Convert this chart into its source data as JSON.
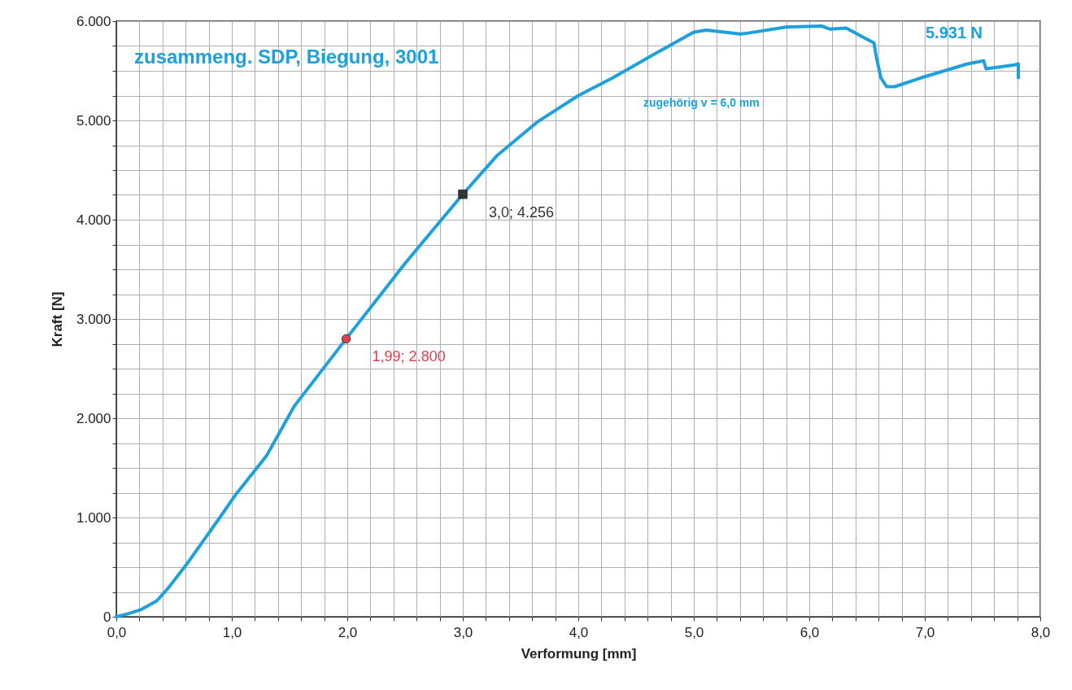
{
  "chart_data": {
    "type": "line",
    "title": "zusammeng. SDP, Biegung,  3001",
    "xlabel": "Verformung [mm]",
    "ylabel": "Kraft [N]",
    "annotations": [
      "5.931 N",
      "zugehörig v = 6,0 mm"
    ],
    "xlim": [
      0,
      8
    ],
    "ylim": [
      0,
      6000
    ],
    "xticks": [
      {
        "value": 0,
        "label": "0,0"
      },
      {
        "value": 0.2,
        "label": null
      },
      {
        "value": 0.4,
        "label": null
      },
      {
        "value": 0.6,
        "label": null
      },
      {
        "value": 0.8,
        "label": null
      },
      {
        "value": 1,
        "label": "1,0"
      },
      {
        "value": 1.2,
        "label": null
      },
      {
        "value": 1.4,
        "label": null
      },
      {
        "value": 1.6,
        "label": null
      },
      {
        "value": 1.8,
        "label": null
      },
      {
        "value": 2,
        "label": "2,0"
      },
      {
        "value": 2.2,
        "label": null
      },
      {
        "value": 2.4,
        "label": null
      },
      {
        "value": 2.6,
        "label": null
      },
      {
        "value": 2.8,
        "label": null
      },
      {
        "value": 3,
        "label": "3,0"
      },
      {
        "value": 3.2,
        "label": null
      },
      {
        "value": 3.4,
        "label": null
      },
      {
        "value": 3.6,
        "label": null
      },
      {
        "value": 3.8,
        "label": null
      },
      {
        "value": 4,
        "label": "4,0"
      },
      {
        "value": 4.2,
        "label": null
      },
      {
        "value": 4.4,
        "label": null
      },
      {
        "value": 4.6,
        "label": null
      },
      {
        "value": 4.8,
        "label": null
      },
      {
        "value": 5,
        "label": "5,0"
      },
      {
        "value": 5.2,
        "label": null
      },
      {
        "value": 5.4,
        "label": null
      },
      {
        "value": 5.6,
        "label": null
      },
      {
        "value": 5.8,
        "label": null
      },
      {
        "value": 6,
        "label": "6,0"
      },
      {
        "value": 6.2,
        "label": null
      },
      {
        "value": 6.4,
        "label": null
      },
      {
        "value": 6.6,
        "label": null
      },
      {
        "value": 6.8,
        "label": null
      },
      {
        "value": 7,
        "label": "7,0"
      },
      {
        "value": 7.2,
        "label": null
      },
      {
        "value": 7.4,
        "label": null
      },
      {
        "value": 7.6,
        "label": null
      },
      {
        "value": 7.8,
        "label": null
      },
      {
        "value": 8,
        "label": "8,0"
      }
    ],
    "yticks": [
      0,
      {
        "value": 250,
        "label": null
      },
      {
        "value": 500,
        "label": null
      },
      {
        "value": 750,
        "label": null
      },
      {
        "value": 1000,
        "label": "1.000"
      },
      {
        "value": 1250,
        "label": null
      },
      {
        "value": 1500,
        "label": null
      },
      {
        "value": 1750,
        "label": null
      },
      {
        "value": 2000,
        "label": "2.000"
      },
      {
        "value": 2250,
        "label": null
      },
      {
        "value": 2500,
        "label": null
      },
      {
        "value": 2750,
        "label": null
      },
      {
        "value": 3000,
        "label": "3.000"
      },
      {
        "value": 3250,
        "label": null
      },
      {
        "value": 3500,
        "label": null
      },
      {
        "value": 3750,
        "label": null
      },
      {
        "value": 4000,
        "label": "4.000"
      },
      {
        "value": 4250,
        "label": null
      },
      {
        "value": 4500,
        "label": null
      },
      {
        "value": 4750,
        "label": null
      },
      {
        "value": 5000,
        "label": "5.000"
      },
      {
        "value": 5250,
        "label": null
      },
      {
        "value": 5500,
        "label": null
      },
      {
        "value": 5750,
        "label": null
      },
      {
        "value": 6000,
        "label": "6.000"
      }
    ],
    "grid": true,
    "line_style": "solid",
    "marker": "none",
    "series": [
      {
        "color": "#1ea0dc",
        "x": [
          0,
          0.1,
          0.21,
          0.35,
          0.45,
          0.61,
          0.89,
          1.04,
          1.3,
          1.54,
          1.99,
          2.5,
          3.0,
          3.3,
          3.64,
          4.0,
          4.3,
          4.63,
          5.0,
          5.11,
          5.4,
          5.47,
          5.8,
          6.11,
          6.18,
          6.32,
          6.48,
          6.56,
          6.58,
          6.62,
          6.67,
          6.74,
          6.97,
          7.37,
          7.51,
          7.53,
          7.78,
          7.81,
          7.81
        ],
        "values": [
          0,
          30,
          70,
          160,
          290,
          530,
          990,
          1240,
          1620,
          2120,
          2800,
          3560,
          4256,
          4650,
          4980,
          5250,
          5430,
          5650,
          5890,
          5910,
          5870,
          5880,
          5940,
          5950,
          5920,
          5930,
          5830,
          5780,
          5640,
          5430,
          5340,
          5340,
          5430,
          5570,
          5600,
          5520,
          5560,
          5570,
          5430
        ]
      },
      {
        "type": "scatter",
        "color": "#e04050",
        "marker": "circle",
        "x": [
          1.99
        ],
        "values": [
          2800
        ],
        "value_labels": [
          "1,99; 2.800"
        ]
      },
      {
        "type": "scatter",
        "color": "#333333",
        "marker": "square",
        "x": [
          3.0
        ],
        "values": [
          4256
        ],
        "value_labels": [
          "3,0; 4.256"
        ]
      }
    ]
  }
}
